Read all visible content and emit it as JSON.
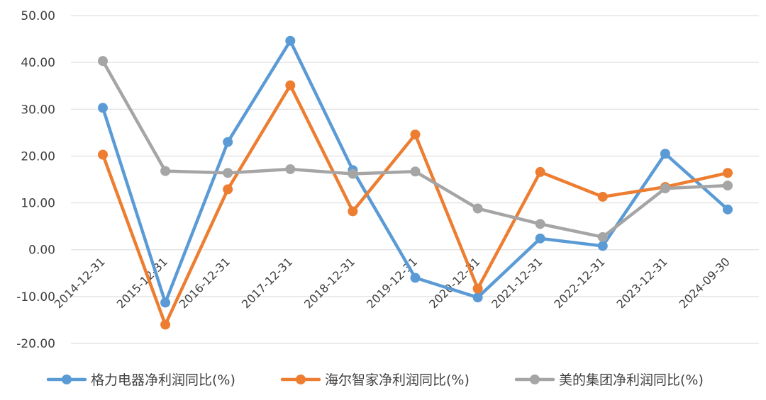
{
  "chart_data": {
    "type": "line",
    "title": "",
    "xlabel": "",
    "ylabel": "",
    "ylim": [
      -20,
      50
    ],
    "yticks": [
      50,
      40,
      30,
      20,
      10,
      0,
      -10,
      -20
    ],
    "ytick_labels": [
      "50.00",
      "40.00",
      "30.00",
      "20.00",
      "10.00",
      "0.00",
      "-10.00",
      "-20.00"
    ],
    "grid": true,
    "legend_position": "bottom",
    "categories": [
      "2014-12-31",
      "2015-12-31",
      "2016-12-31",
      "2017-12-31",
      "2018-12-31",
      "2019-12-31",
      "2020-12-31",
      "2021-12-31",
      "2022-12-31",
      "2023-12-31",
      "2024-09-30"
    ],
    "series": [
      {
        "name": "格力电器净利润同比(%)",
        "color": "#5B9BD5",
        "values": [
          30.3,
          -11.3,
          23.0,
          44.6,
          17.0,
          -6.0,
          -10.2,
          2.4,
          0.8,
          20.5,
          8.6
        ]
      },
      {
        "name": "海尔智家净利润同比(%)",
        "color": "#ED7D31",
        "values": [
          20.3,
          -16.0,
          12.9,
          35.1,
          8.2,
          24.6,
          -8.3,
          16.6,
          11.3,
          13.4,
          16.4
        ]
      },
      {
        "name": "美的集团净利润同比(%)",
        "color": "#A5A5A5",
        "values": [
          40.3,
          16.8,
          16.4,
          17.2,
          16.2,
          16.7,
          8.8,
          5.5,
          2.7,
          13.1,
          13.7
        ]
      }
    ]
  }
}
